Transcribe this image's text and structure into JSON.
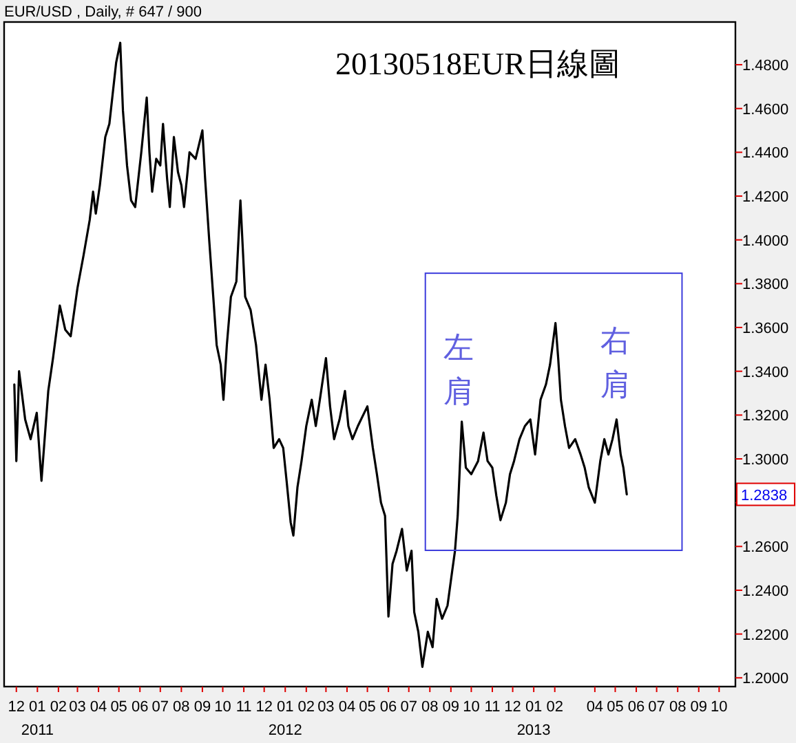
{
  "chart_data": {
    "type": "line",
    "title": "20130518EUR日線圖",
    "subtitle": "EUR/USD , Daily, # 647 / 900",
    "x": [
      "2010-11-28",
      "2010-12-01",
      "2010-12-05",
      "2010-12-14",
      "2010-12-22",
      "2010-12-31",
      "2011-01-07",
      "2011-01-17",
      "2011-01-24",
      "2011-02-03",
      "2011-02-11",
      "2011-02-19",
      "2011-03-01",
      "2011-03-10",
      "2011-03-19",
      "2011-03-24",
      "2011-03-28",
      "2011-04-03",
      "2011-04-11",
      "2011-04-17",
      "2011-04-27",
      "2011-05-03",
      "2011-05-07",
      "2011-05-13",
      "2011-05-19",
      "2011-05-25",
      "2011-06-03",
      "2011-06-11",
      "2011-06-15",
      "2011-06-19",
      "2011-06-25",
      "2011-07-01",
      "2011-07-05",
      "2011-07-11",
      "2011-07-15",
      "2011-07-21",
      "2011-07-27",
      "2011-08-01",
      "2011-08-05",
      "2011-08-13",
      "2011-08-22",
      "2011-09-01",
      "2011-09-05",
      "2011-09-11",
      "2011-09-17",
      "2011-09-22",
      "2011-09-28",
      "2011-10-02",
      "2011-10-07",
      "2011-10-13",
      "2011-10-21",
      "2011-10-27",
      "2011-11-03",
      "2011-11-11",
      "2011-11-19",
      "2011-11-27",
      "2011-12-03",
      "2011-12-09",
      "2011-12-15",
      "2011-12-23",
      "2011-12-29",
      "2012-01-03",
      "2012-01-09",
      "2012-01-13",
      "2012-01-19",
      "2012-01-25",
      "2012-02-01",
      "2012-02-09",
      "2012-02-15",
      "2012-02-21",
      "2012-03-01",
      "2012-03-07",
      "2012-03-13",
      "2012-03-21",
      "2012-03-29",
      "2012-04-03",
      "2012-04-09",
      "2012-04-17",
      "2012-05-01",
      "2012-05-09",
      "2012-05-15",
      "2012-05-21",
      "2012-05-27",
      "2012-06-01",
      "2012-06-07",
      "2012-06-13",
      "2012-06-21",
      "2012-06-28",
      "2012-07-05",
      "2012-07-09",
      "2012-07-15",
      "2012-07-21",
      "2012-07-29",
      "2012-08-05",
      "2012-08-11",
      "2012-08-19",
      "2012-08-27",
      "2012-09-03",
      "2012-09-07",
      "2012-09-11",
      "2012-09-17",
      "2012-09-23",
      "2012-10-01",
      "2012-10-11",
      "2012-10-19",
      "2012-10-25",
      "2012-11-01",
      "2012-11-07",
      "2012-11-13",
      "2012-11-21",
      "2012-11-27",
      "2012-12-03",
      "2012-12-11",
      "2012-12-19",
      "2012-12-27",
      "2013-01-03",
      "2013-01-11",
      "2013-01-19",
      "2013-01-25",
      "2013-02-02",
      "2013-02-06",
      "2013-02-10",
      "2013-02-16",
      "2013-02-22",
      "2013-03-03",
      "2013-03-11",
      "2013-03-17",
      "2013-03-23",
      "2013-04-01",
      "2013-04-09",
      "2013-04-15",
      "2013-04-21",
      "2013-04-27",
      "2013-05-03",
      "2013-05-09",
      "2013-05-13",
      "2013-05-18"
    ],
    "series": [
      {
        "color": "#000000",
        "values": [
          1.334,
          1.299,
          1.34,
          1.318,
          1.309,
          1.321,
          1.29,
          1.331,
          1.346,
          1.37,
          1.359,
          1.356,
          1.378,
          1.393,
          1.409,
          1.422,
          1.412,
          1.425,
          1.447,
          1.453,
          1.481,
          1.49,
          1.459,
          1.434,
          1.418,
          1.415,
          1.44,
          1.465,
          1.44,
          1.422,
          1.437,
          1.434,
          1.453,
          1.428,
          1.415,
          1.447,
          1.431,
          1.425,
          1.415,
          1.44,
          1.437,
          1.45,
          1.428,
          1.4,
          1.374,
          1.352,
          1.343,
          1.327,
          1.352,
          1.374,
          1.381,
          1.418,
          1.374,
          1.368,
          1.352,
          1.327,
          1.343,
          1.327,
          1.305,
          1.309,
          1.305,
          1.29,
          1.271,
          1.265,
          1.287,
          1.299,
          1.315,
          1.327,
          1.315,
          1.327,
          1.346,
          1.324,
          1.309,
          1.318,
          1.331,
          1.315,
          1.309,
          1.315,
          1.324,
          1.305,
          1.293,
          1.28,
          1.274,
          1.228,
          1.252,
          1.258,
          1.268,
          1.249,
          1.258,
          1.23,
          1.221,
          1.205,
          1.221,
          1.214,
          1.236,
          1.227,
          1.233,
          1.249,
          1.258,
          1.274,
          1.317,
          1.296,
          1.293,
          1.299,
          1.312,
          1.299,
          1.296,
          1.283,
          1.272,
          1.28,
          1.293,
          1.299,
          1.309,
          1.315,
          1.318,
          1.302,
          1.327,
          1.334,
          1.343,
          1.362,
          1.346,
          1.327,
          1.315,
          1.305,
          1.309,
          1.302,
          1.296,
          1.287,
          1.28,
          1.299,
          1.309,
          1.302,
          1.309,
          1.318,
          1.302,
          1.296,
          1.2838
        ]
      }
    ],
    "xlim": [
      "2010-11-13",
      "2013-10-25"
    ],
    "xticks": [
      {
        "value": "2010-12-01",
        "label": "12"
      },
      {
        "value": "2011-01-01",
        "label": "01\n2011"
      },
      {
        "value": "2011-02-01",
        "label": "02"
      },
      {
        "value": "2011-03-01",
        "label": "03"
      },
      {
        "value": "2011-04-01",
        "label": "04"
      },
      {
        "value": "2011-05-01",
        "label": "05"
      },
      {
        "value": "2011-06-01",
        "label": "06"
      },
      {
        "value": "2011-07-01",
        "label": "07"
      },
      {
        "value": "2011-08-01",
        "label": "08"
      },
      {
        "value": "2011-09-01",
        "label": "09"
      },
      {
        "value": "2011-10-01",
        "label": "10"
      },
      {
        "value": "2011-11-01",
        "label": "11"
      },
      {
        "value": "2011-12-01",
        "label": "12"
      },
      {
        "value": "2012-01-01",
        "label": "01\n2012"
      },
      {
        "value": "2012-02-01",
        "label": "02"
      },
      {
        "value": "2012-03-01",
        "label": "03"
      },
      {
        "value": "2012-04-01",
        "label": "04"
      },
      {
        "value": "2012-05-01",
        "label": "05"
      },
      {
        "value": "2012-06-01",
        "label": "06"
      },
      {
        "value": "2012-07-01",
        "label": "07"
      },
      {
        "value": "2012-08-01",
        "label": "08"
      },
      {
        "value": "2012-09-01",
        "label": "09"
      },
      {
        "value": "2012-10-01",
        "label": "10"
      },
      {
        "value": "2012-11-01",
        "label": "11"
      },
      {
        "value": "2012-12-01",
        "label": "12"
      },
      {
        "value": "2013-01-01",
        "label": "01\n2013"
      },
      {
        "value": "2013-02-01",
        "label": "02"
      },
      {
        "value": "2013-04-01",
        "label": "04"
      },
      {
        "value": "2013-05-01",
        "label": "05"
      },
      {
        "value": "2013-06-01",
        "label": "06"
      },
      {
        "value": "2013-07-01",
        "label": "07"
      },
      {
        "value": "2013-08-01",
        "label": "08"
      },
      {
        "value": "2013-09-01",
        "label": "09"
      },
      {
        "value": "2013-10-01",
        "label": "10"
      }
    ],
    "ylim": [
      1.196,
      1.4995
    ],
    "yticks": [
      {
        "value": 1.2,
        "label": "1.2000"
      },
      {
        "value": 1.22,
        "label": "1.2200"
      },
      {
        "value": 1.24,
        "label": "1.2400"
      },
      {
        "value": 1.26,
        "label": "1.2600"
      },
      {
        "value": 1.28,
        "label": null
      },
      {
        "value": 1.3,
        "label": "1.3000"
      },
      {
        "value": 1.32,
        "label": "1.3200"
      },
      {
        "value": 1.34,
        "label": "1.3400"
      },
      {
        "value": 1.36,
        "label": "1.3600"
      },
      {
        "value": 1.38,
        "label": "1.3800"
      },
      {
        "value": 1.4,
        "label": "1.4000"
      },
      {
        "value": 1.42,
        "label": "1.4200"
      },
      {
        "value": 1.44,
        "label": "1.4400"
      },
      {
        "value": 1.46,
        "label": "1.4600"
      },
      {
        "value": 1.48,
        "label": "1.4800"
      }
    ],
    "annotations": [
      "左肩",
      "右肩",
      {
        "text": "1.2838",
        "y": 1.2838
      }
    ],
    "grid": false,
    "marker": "none",
    "line_style": "solid"
  }
}
